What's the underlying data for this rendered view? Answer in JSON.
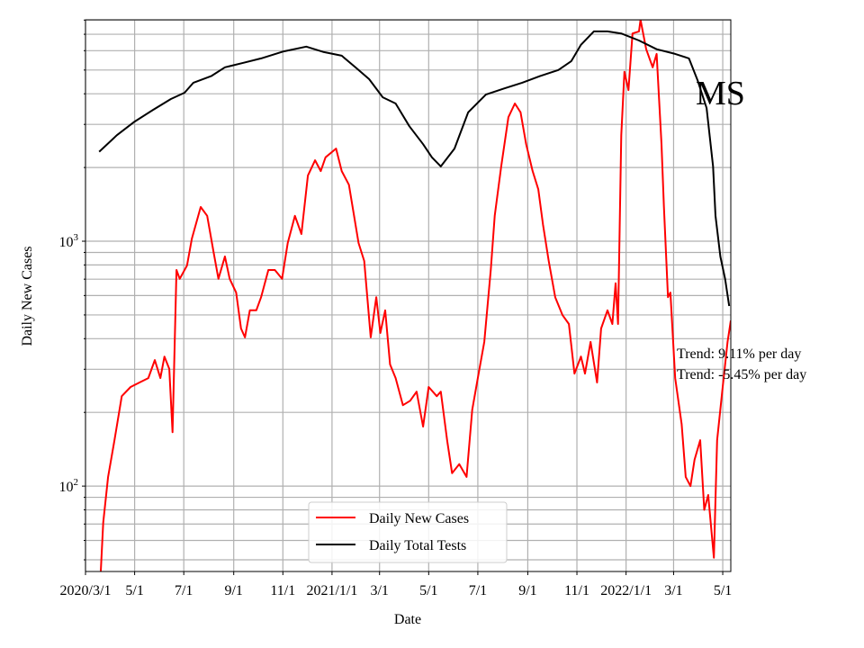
{
  "chart_data": {
    "type": "line",
    "title": "",
    "xlabel": "Date",
    "ylabel": "Daily New Cases",
    "yscale": "log",
    "x_origin_date": "2020/3/1",
    "x_units": "days since 2020/3/1",
    "xlim": [
      0,
      801
    ],
    "ylim": [
      44.8,
      8020
    ],
    "grid": true,
    "legend_position": "lower center",
    "x_ticks": [
      {
        "day": 0,
        "label": "2020/3/1"
      },
      {
        "day": 61,
        "label": "5/1"
      },
      {
        "day": 122,
        "label": "7/1"
      },
      {
        "day": 184,
        "label": "9/1"
      },
      {
        "day": 245,
        "label": "11/1"
      },
      {
        "day": 306,
        "label": "2021/1/1"
      },
      {
        "day": 365,
        "label": "3/1"
      },
      {
        "day": 426,
        "label": "5/1"
      },
      {
        "day": 487,
        "label": "7/1"
      },
      {
        "day": 549,
        "label": "9/1"
      },
      {
        "day": 610,
        "label": "11/1"
      },
      {
        "day": 671,
        "label": "2022/1/1"
      },
      {
        "day": 730,
        "label": "3/1"
      },
      {
        "day": 791,
        "label": "5/1"
      }
    ],
    "y_ticks": [
      {
        "value": 100,
        "base": "10",
        "exp": "2"
      },
      {
        "value": 1000,
        "base": "10",
        "exp": "3"
      }
    ],
    "series": [
      {
        "name": "Daily New Cases",
        "color": "#ff0000",
        "points": [
          [
            19,
            45
          ],
          [
            22,
            71
          ],
          [
            28,
            109
          ],
          [
            36,
            154
          ],
          [
            45,
            233
          ],
          [
            56,
            254
          ],
          [
            67,
            265
          ],
          [
            78,
            276
          ],
          [
            86,
            327
          ],
          [
            93,
            276
          ],
          [
            98,
            338
          ],
          [
            104,
            301
          ],
          [
            108,
            166
          ],
          [
            113,
            763
          ],
          [
            117,
            702
          ],
          [
            126,
            796
          ],
          [
            132,
            1025
          ],
          [
            143,
            1380
          ],
          [
            151,
            1270
          ],
          [
            159,
            903
          ],
          [
            165,
            702
          ],
          [
            173,
            866
          ],
          [
            179,
            702
          ],
          [
            187,
            617
          ],
          [
            193,
            440
          ],
          [
            198,
            405
          ],
          [
            204,
            522
          ],
          [
            212,
            522
          ],
          [
            218,
            591
          ],
          [
            227,
            763
          ],
          [
            235,
            763
          ],
          [
            244,
            702
          ],
          [
            251,
            983
          ],
          [
            260,
            1270
          ],
          [
            268,
            1070
          ],
          [
            276,
            1854
          ],
          [
            285,
            2140
          ],
          [
            292,
            1934
          ],
          [
            298,
            2200
          ],
          [
            311,
            2390
          ],
          [
            318,
            1934
          ],
          [
            327,
            1700
          ],
          [
            339,
            983
          ],
          [
            346,
            830
          ],
          [
            354,
            405
          ],
          [
            361,
            591
          ],
          [
            366,
            422
          ],
          [
            372,
            522
          ],
          [
            378,
            314
          ],
          [
            385,
            276
          ],
          [
            394,
            214
          ],
          [
            403,
            223
          ],
          [
            411,
            243
          ],
          [
            419,
            175
          ],
          [
            426,
            254
          ],
          [
            436,
            233
          ],
          [
            441,
            243
          ],
          [
            449,
            153
          ],
          [
            455,
            113
          ],
          [
            464,
            123
          ],
          [
            473,
            109
          ],
          [
            480,
            205
          ],
          [
            488,
            288
          ],
          [
            495,
            388
          ],
          [
            503,
            763
          ],
          [
            508,
            1270
          ],
          [
            516,
            2020
          ],
          [
            525,
            3210
          ],
          [
            533,
            3650
          ],
          [
            540,
            3360
          ],
          [
            547,
            2490
          ],
          [
            555,
            1934
          ],
          [
            562,
            1630
          ],
          [
            568,
            1165
          ],
          [
            575,
            830
          ],
          [
            583,
            591
          ],
          [
            592,
            500
          ],
          [
            600,
            459
          ],
          [
            607,
            288
          ],
          [
            615,
            338
          ],
          [
            620,
            288
          ],
          [
            627,
            388
          ],
          [
            635,
            265
          ],
          [
            640,
            440
          ],
          [
            648,
            522
          ],
          [
            654,
            459
          ],
          [
            658,
            673
          ],
          [
            661,
            459
          ],
          [
            665,
            2710
          ],
          [
            669,
            4920
          ],
          [
            674,
            4140
          ],
          [
            679,
            7050
          ],
          [
            687,
            7190
          ],
          [
            689,
            8020
          ],
          [
            696,
            6080
          ],
          [
            704,
            5130
          ],
          [
            709,
            5820
          ],
          [
            715,
            2490
          ],
          [
            718,
            1380
          ],
          [
            723,
            591
          ],
          [
            726,
            617
          ],
          [
            732,
            276
          ],
          [
            740,
            179
          ],
          [
            745,
            109
          ],
          [
            751,
            100
          ],
          [
            756,
            128
          ],
          [
            763,
            154
          ],
          [
            768,
            80
          ],
          [
            773,
            92
          ],
          [
            780,
            51
          ],
          [
            784,
            154
          ],
          [
            791,
            254
          ],
          [
            797,
            388
          ],
          [
            801,
            474
          ]
        ]
      },
      {
        "name": "Daily Total Tests",
        "color": "#000000",
        "points": [
          [
            17,
            2320
          ],
          [
            39,
            2710
          ],
          [
            61,
            3080
          ],
          [
            84,
            3440
          ],
          [
            106,
            3810
          ],
          [
            123,
            4040
          ],
          [
            134,
            4440
          ],
          [
            156,
            4720
          ],
          [
            173,
            5130
          ],
          [
            196,
            5350
          ],
          [
            218,
            5580
          ],
          [
            246,
            5960
          ],
          [
            274,
            6230
          ],
          [
            296,
            5920
          ],
          [
            318,
            5720
          ],
          [
            335,
            5130
          ],
          [
            352,
            4590
          ],
          [
            369,
            3870
          ],
          [
            385,
            3650
          ],
          [
            402,
            2950
          ],
          [
            419,
            2490
          ],
          [
            430,
            2200
          ],
          [
            441,
            2020
          ],
          [
            458,
            2390
          ],
          [
            475,
            3360
          ],
          [
            497,
            3970
          ],
          [
            520,
            4210
          ],
          [
            542,
            4440
          ],
          [
            564,
            4720
          ],
          [
            587,
            5000
          ],
          [
            603,
            5440
          ],
          [
            615,
            6340
          ],
          [
            631,
            7190
          ],
          [
            648,
            7190
          ],
          [
            665,
            7050
          ],
          [
            687,
            6600
          ],
          [
            709,
            6080
          ],
          [
            732,
            5820
          ],
          [
            749,
            5580
          ],
          [
            760,
            4520
          ],
          [
            771,
            3500
          ],
          [
            779,
            2020
          ],
          [
            782,
            1270
          ],
          [
            788,
            866
          ],
          [
            794,
            701
          ],
          [
            799,
            544
          ]
        ]
      }
    ],
    "annotations": [
      {
        "text": "MS"
      },
      {
        "text": "Trend: 9.11% per day"
      },
      {
        "text": "Trend: -5.45% per day"
      }
    ]
  }
}
